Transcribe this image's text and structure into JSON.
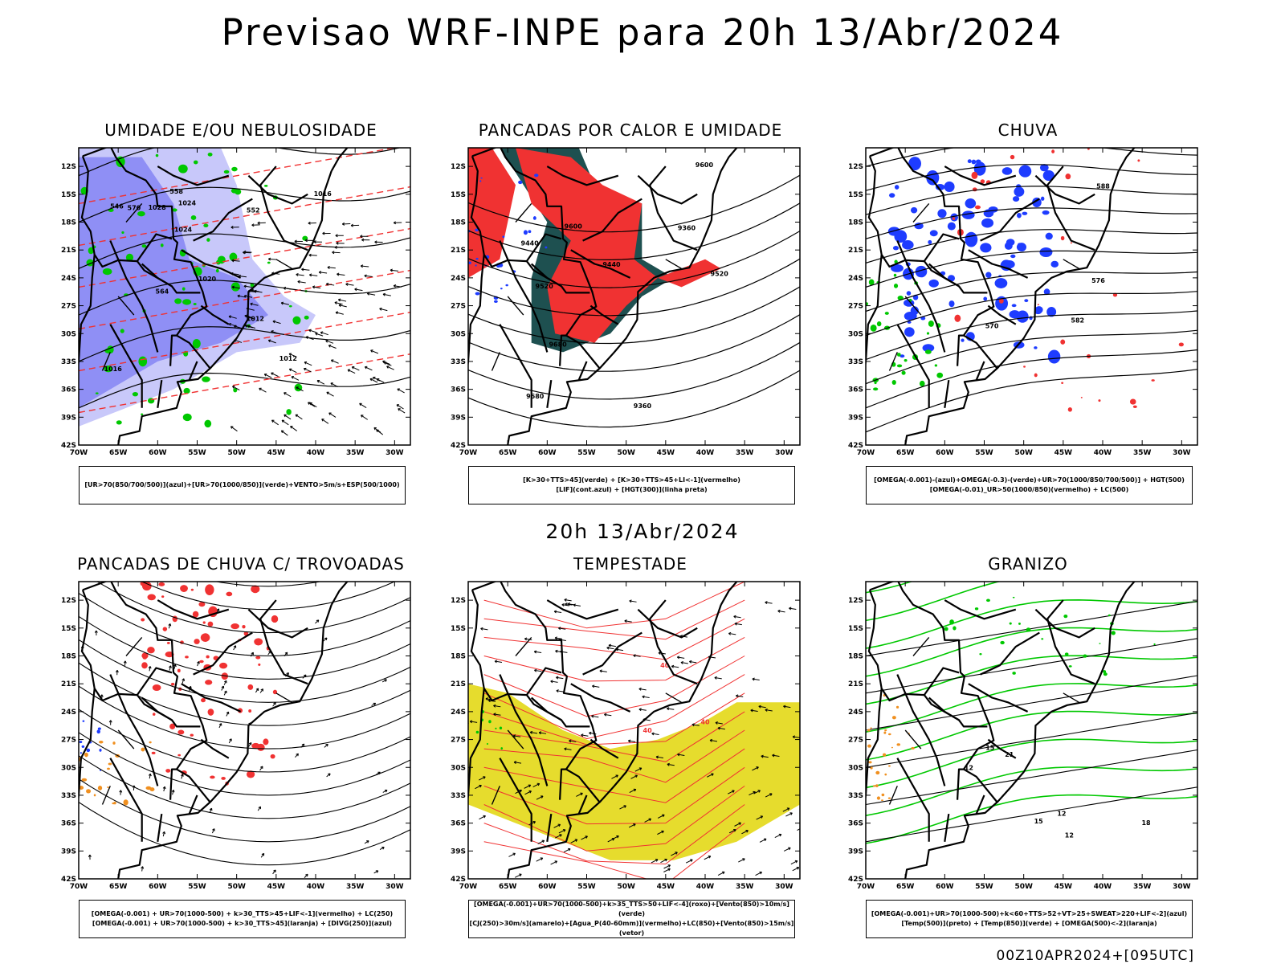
{
  "title": "Previsao WRF-INPE  para 20h 13/Abr/2024",
  "subtitle": "20h 13/Abr/2024",
  "footer": "00Z10APR2024+[095UTC]",
  "axes": {
    "lat_labels": [
      "12S",
      "15S",
      "18S",
      "21S",
      "24S",
      "27S",
      "30S",
      "33S",
      "36S",
      "39S",
      "42S"
    ],
    "lon_labels": [
      "70W",
      "65W",
      "60W",
      "55W",
      "50W",
      "45W",
      "40W",
      "35W",
      "30W"
    ]
  },
  "colors": {
    "blue_shade": "#8f8ff5",
    "light_blue": "#c8c8fa",
    "green": "#00c800",
    "red": "#f03232",
    "dark_teal": "#1e5050",
    "blue": "#1e3cff",
    "orange": "#f09020",
    "yellow": "#e6dc2d",
    "contour": "#000000"
  },
  "panels": [
    {
      "id": "umidade",
      "title": "UMIDADE E/OU NEBULOSIDADE",
      "legend": [
        "[UR>70(850/700/500)](azul)+[UR>70(1000/850)](verde)+VENTO>5m/s+ESP(500/1000)"
      ],
      "labels": [
        "1012",
        "1012",
        "1016",
        "1016",
        "1020",
        "1024",
        "1024",
        "1028",
        "570",
        "564",
        "558",
        "552",
        "546"
      ]
    },
    {
      "id": "pancadas_calor",
      "title": "PANCADAS POR CALOR E UMIDADE",
      "legend": [
        "[K>30+TTS>45](verde) + [K>30+TTS>45+LI<-1](vermelho)",
        "[LIF](cont.azul) + [HGT(300)](linha preta)"
      ],
      "labels": [
        "9680",
        "9680",
        "9600",
        "9600",
        "9520",
        "9520",
        "9440",
        "9440",
        "9360",
        "9360"
      ]
    },
    {
      "id": "chuva",
      "title": "CHUVA",
      "legend": [
        "[OMEGA(-0.001)-(azul)+OMEGA(-0.3)-(verde)+UR>70(1000/850/700/500)] + HGT(500)",
        "[OMEGA(-0.01)_UR>50(1000/850)(vermelho) + LC(500)"
      ],
      "labels": [
        "588",
        "582",
        "576",
        "570"
      ]
    },
    {
      "id": "trovoadas",
      "title": "PANCADAS DE CHUVA C/ TROVOADAS",
      "legend": [
        "[OMEGA(-0.001) + UR>70(1000-500) + k>30_TTS>45+LIF<-1](vermelho) + LC(250)",
        "[OMEGA(-0.001) + UR>70(1000-500) + k>30_TTS>45](laranja) + [DIVG(250)](azul)"
      ],
      "labels": []
    },
    {
      "id": "tempestade",
      "title": "TEMPESTADE",
      "legend": [
        "[OMEGA(-0.001)+UR>70(1000-500)+k>35_TTS>50+LIF<-4](roxo)+[Vento(850)>10m/s](verde)",
        "[CJ(250)>30m/s](amarelo)+[Agua_P(40-60mm)](vermelho)+LC(850)+[Vento(850)>15m/s](vetor)"
      ],
      "labels": [
        "40",
        "40",
        "40"
      ]
    },
    {
      "id": "granizo",
      "title": "GRANIZO",
      "legend": [
        "[OMEGA(-0.001)+UR>70(1000-500)+k<60+TTS>52+VT>25+SWEAT>220+LIF<-2](azul)",
        "[Temp(500)](preto) + [Temp(850)](verde) + [OMEGA(500)<-2](laranja)"
      ],
      "labels": [
        "12",
        "12",
        "15",
        "15",
        "18",
        "21",
        "12"
      ]
    }
  ]
}
